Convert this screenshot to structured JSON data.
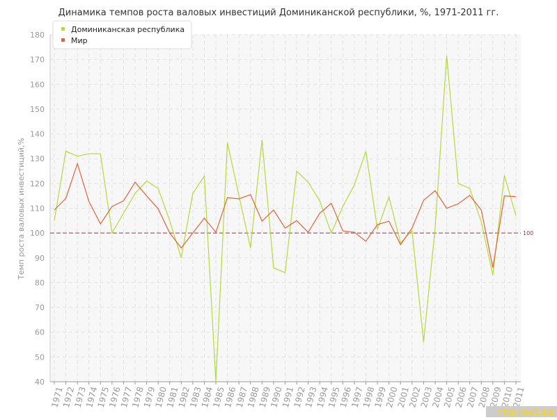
{
  "chart_data": {
    "type": "line",
    "title": "Динамика темпов роста валовых инвестиций Доминиканской республики, %, 1971-2011 гг.",
    "y_label": "Темп роста валовых инвестиций,%",
    "categories": [
      "1971",
      "1972",
      "1973",
      "1974",
      "1975",
      "1976",
      "1977",
      "1978",
      "1979",
      "1980",
      "1981",
      "1982",
      "1983",
      "1984",
      "1985",
      "1986",
      "1987",
      "1988",
      "1989",
      "1990",
      "1991",
      "1992",
      "1993",
      "1994",
      "1995",
      "1996",
      "1997",
      "1998",
      "1999",
      "2000",
      "2001",
      "2002",
      "2003",
      "2004",
      "2005",
      "2006",
      "2007",
      "2008",
      "2009",
      "2010",
      "2011"
    ],
    "series": [
      {
        "name": "Доминиканская республика",
        "color": "#b5d93a",
        "values": [
          105,
          133,
          131,
          132,
          132,
          100,
          108,
          116,
          121,
          118,
          105,
          90,
          116,
          123,
          40,
          136.5,
          115,
          94,
          137.6,
          86,
          84,
          125,
          120.5,
          113,
          100,
          110.7,
          119.4,
          133,
          101.5,
          114.6,
          96,
          101,
          56,
          102,
          171.6,
          120,
          118,
          104.5,
          83,
          123.3,
          107
        ]
      },
      {
        "name": "Мир",
        "color": "#e0643a",
        "values": [
          109.3,
          114,
          128,
          112.7,
          103.7,
          110.7,
          113,
          120.5,
          115,
          109.8,
          100,
          94,
          100,
          106,
          100.3,
          114.3,
          113.8,
          115.5,
          104.8,
          109.3,
          102,
          105,
          100.3,
          108,
          112,
          100.9,
          100.3,
          96.7,
          103.4,
          104.8,
          95.3,
          102,
          113.2,
          117.1,
          110,
          111.8,
          115.2,
          109.3,
          86,
          115,
          114.7
        ]
      }
    ],
    "reference_line": 100,
    "ylim": [
      40,
      180
    ],
    "yticks": [
      40,
      50,
      60,
      70,
      80,
      90,
      100,
      110,
      120,
      130,
      140,
      150,
      160,
      170,
      180
    ],
    "grid": true,
    "legend": "top-left",
    "watermark": "http://be5.biz"
  }
}
